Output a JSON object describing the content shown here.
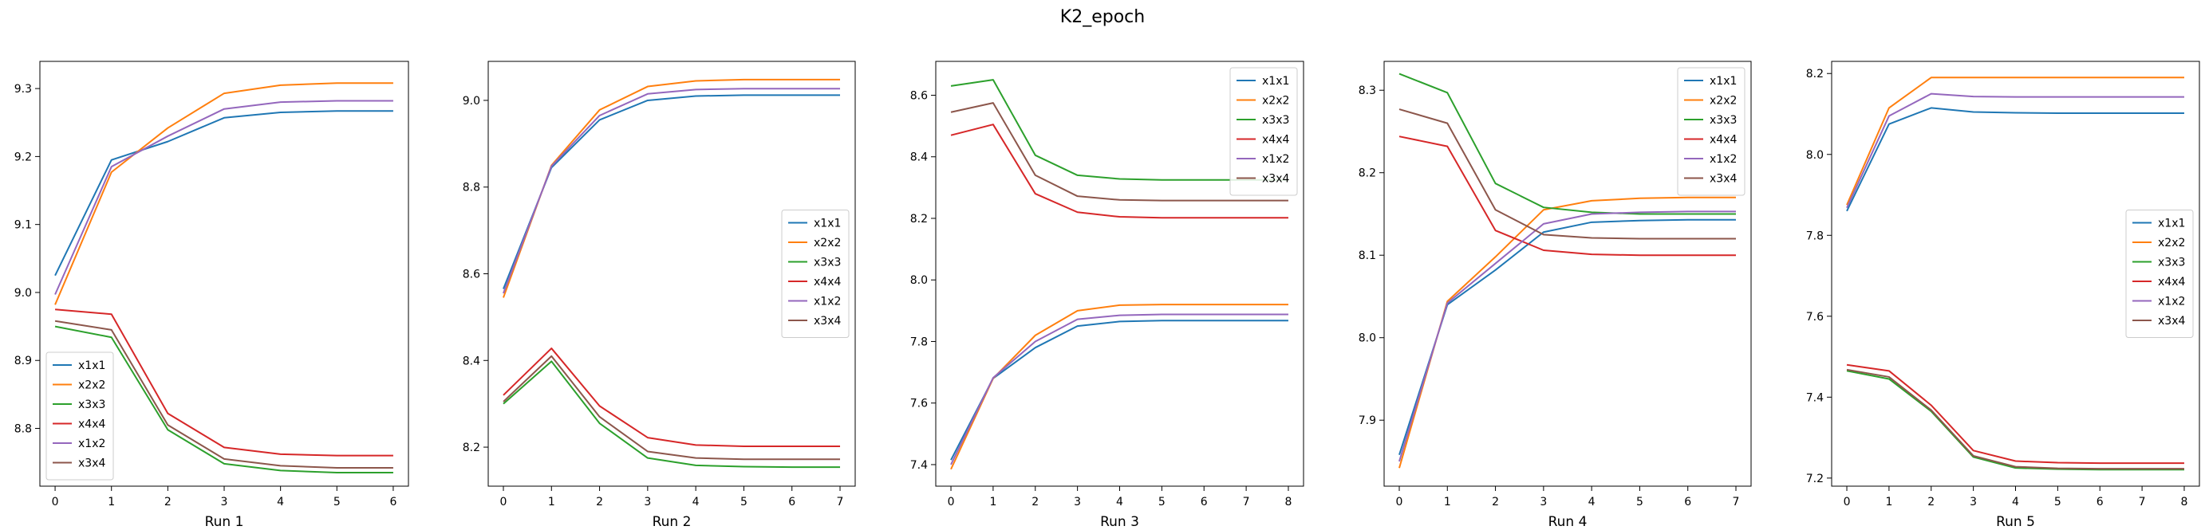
{
  "figure": {
    "title": "K2_epoch"
  },
  "colors": {
    "x1x1": "#1f77b4",
    "x2x2": "#ff7f0e",
    "x3x3": "#2ca02c",
    "x4x4": "#d62728",
    "x1x2": "#9467bd",
    "x3x4": "#8c564b"
  },
  "chart_data": [
    {
      "type": "line",
      "xlabel": "Run 1",
      "x": [
        0,
        1,
        2,
        3,
        4,
        5,
        6
      ],
      "ylim": [
        8.715,
        9.34
      ],
      "yticks": [
        8.8,
        8.9,
        9.0,
        9.1,
        9.2,
        9.3
      ],
      "legend": "lower-left",
      "series": [
        {
          "name": "x1x1",
          "values": [
            9.025,
            9.195,
            9.222,
            9.257,
            9.265,
            9.267,
            9.267
          ]
        },
        {
          "name": "x2x2",
          "values": [
            8.982,
            9.177,
            9.242,
            9.293,
            9.305,
            9.308,
            9.308
          ]
        },
        {
          "name": "x3x3",
          "values": [
            8.95,
            8.934,
            8.798,
            8.748,
            8.738,
            8.735,
            8.735
          ]
        },
        {
          "name": "x4x4",
          "values": [
            8.975,
            8.968,
            8.822,
            8.772,
            8.762,
            8.76,
            8.76
          ]
        },
        {
          "name": "x1x2",
          "values": [
            8.997,
            9.185,
            9.23,
            9.27,
            9.28,
            9.282,
            9.282
          ]
        },
        {
          "name": "x3x4",
          "values": [
            8.958,
            8.945,
            8.805,
            8.755,
            8.745,
            8.742,
            8.742
          ]
        }
      ]
    },
    {
      "type": "line",
      "xlabel": "Run 2",
      "x": [
        0,
        1,
        2,
        3,
        4,
        5,
        6,
        7
      ],
      "ylim": [
        8.11,
        9.09
      ],
      "yticks": [
        8.2,
        8.4,
        8.6,
        8.8,
        9.0
      ],
      "legend": "center-right",
      "series": [
        {
          "name": "x1x1",
          "values": [
            8.565,
            8.845,
            8.955,
            9.0,
            9.01,
            9.012,
            9.012,
            9.012
          ]
        },
        {
          "name": "x2x2",
          "values": [
            8.545,
            8.85,
            8.978,
            9.032,
            9.045,
            9.048,
            9.048,
            9.048
          ]
        },
        {
          "name": "x3x3",
          "values": [
            8.3,
            8.398,
            8.255,
            8.175,
            8.158,
            8.155,
            8.154,
            8.154
          ]
        },
        {
          "name": "x4x4",
          "values": [
            8.32,
            8.428,
            8.295,
            8.222,
            8.205,
            8.202,
            8.202,
            8.202
          ]
        },
        {
          "name": "x1x2",
          "values": [
            8.555,
            8.848,
            8.965,
            9.015,
            9.025,
            9.027,
            9.027,
            9.027
          ]
        },
        {
          "name": "x3x4",
          "values": [
            8.305,
            8.41,
            8.27,
            8.19,
            8.175,
            8.172,
            8.172,
            8.172
          ]
        }
      ]
    },
    {
      "type": "line",
      "xlabel": "Run 3",
      "x": [
        0,
        1,
        2,
        3,
        4,
        5,
        6,
        7,
        8
      ],
      "ylim": [
        7.33,
        8.71
      ],
      "yticks": [
        7.4,
        7.6,
        7.8,
        8.0,
        8.2,
        8.4,
        8.6
      ],
      "legend": "upper-right",
      "series": [
        {
          "name": "x1x1",
          "values": [
            7.415,
            7.68,
            7.78,
            7.85,
            7.865,
            7.868,
            7.868,
            7.868,
            7.868
          ]
        },
        {
          "name": "x2x2",
          "values": [
            7.385,
            7.68,
            7.82,
            7.9,
            7.918,
            7.92,
            7.92,
            7.92,
            7.92
          ]
        },
        {
          "name": "x3x3",
          "values": [
            8.63,
            8.65,
            8.405,
            8.34,
            8.328,
            8.325,
            8.325,
            8.325,
            8.325
          ]
        },
        {
          "name": "x4x4",
          "values": [
            8.47,
            8.505,
            8.28,
            8.22,
            8.205,
            8.202,
            8.202,
            8.202,
            8.202
          ]
        },
        {
          "name": "x1x2",
          "values": [
            7.4,
            7.682,
            7.8,
            7.872,
            7.885,
            7.888,
            7.888,
            7.888,
            7.888
          ]
        },
        {
          "name": "x3x4",
          "values": [
            8.545,
            8.575,
            8.34,
            8.272,
            8.26,
            8.258,
            8.258,
            8.258,
            8.258
          ]
        }
      ]
    },
    {
      "type": "line",
      "xlabel": "Run 4",
      "x": [
        0,
        1,
        2,
        3,
        4,
        5,
        6,
        7
      ],
      "ylim": [
        7.82,
        8.335
      ],
      "yticks": [
        7.9,
        8.0,
        8.1,
        8.2,
        8.3
      ],
      "legend": "upper-right",
      "series": [
        {
          "name": "x1x1",
          "values": [
            7.858,
            8.04,
            8.082,
            8.128,
            8.14,
            8.142,
            8.143,
            8.143
          ]
        },
        {
          "name": "x2x2",
          "values": [
            7.842,
            8.044,
            8.098,
            8.155,
            8.166,
            8.169,
            8.17,
            8.17
          ]
        },
        {
          "name": "x3x3",
          "values": [
            8.32,
            8.297,
            8.187,
            8.158,
            8.152,
            8.15,
            8.15,
            8.15
          ]
        },
        {
          "name": "x4x4",
          "values": [
            8.244,
            8.232,
            8.13,
            8.106,
            8.101,
            8.1,
            8.1,
            8.1
          ]
        },
        {
          "name": "x1x2",
          "values": [
            7.85,
            8.042,
            8.09,
            8.138,
            8.15,
            8.152,
            8.153,
            8.153
          ]
        },
        {
          "name": "x3x4",
          "values": [
            8.277,
            8.26,
            8.155,
            8.125,
            8.121,
            8.12,
            8.12,
            8.12
          ]
        }
      ]
    },
    {
      "type": "line",
      "xlabel": "Run 5",
      "x": [
        0,
        1,
        2,
        3,
        4,
        5,
        6,
        7,
        8
      ],
      "ylim": [
        7.18,
        8.23
      ],
      "yticks": [
        7.2,
        7.4,
        7.6,
        7.8,
        8.0,
        8.2
      ],
      "legend": "center-right",
      "series": [
        {
          "name": "x1x1",
          "values": [
            7.86,
            8.075,
            8.115,
            8.105,
            8.103,
            8.102,
            8.102,
            8.102,
            8.102
          ]
        },
        {
          "name": "x2x2",
          "values": [
            7.875,
            8.115,
            8.19,
            8.19,
            8.19,
            8.19,
            8.19,
            8.19,
            8.19
          ]
        },
        {
          "name": "x3x3",
          "values": [
            7.465,
            7.445,
            7.365,
            7.252,
            7.225,
            7.222,
            7.221,
            7.221,
            7.221
          ]
        },
        {
          "name": "x4x4",
          "values": [
            7.48,
            7.465,
            7.38,
            7.268,
            7.242,
            7.238,
            7.237,
            7.237,
            7.237
          ]
        },
        {
          "name": "x1x2",
          "values": [
            7.868,
            8.095,
            8.15,
            8.143,
            8.142,
            8.142,
            8.142,
            8.142,
            8.142
          ]
        },
        {
          "name": "x3x4",
          "values": [
            7.468,
            7.45,
            7.368,
            7.255,
            7.228,
            7.224,
            7.223,
            7.223,
            7.223
          ]
        }
      ]
    }
  ]
}
